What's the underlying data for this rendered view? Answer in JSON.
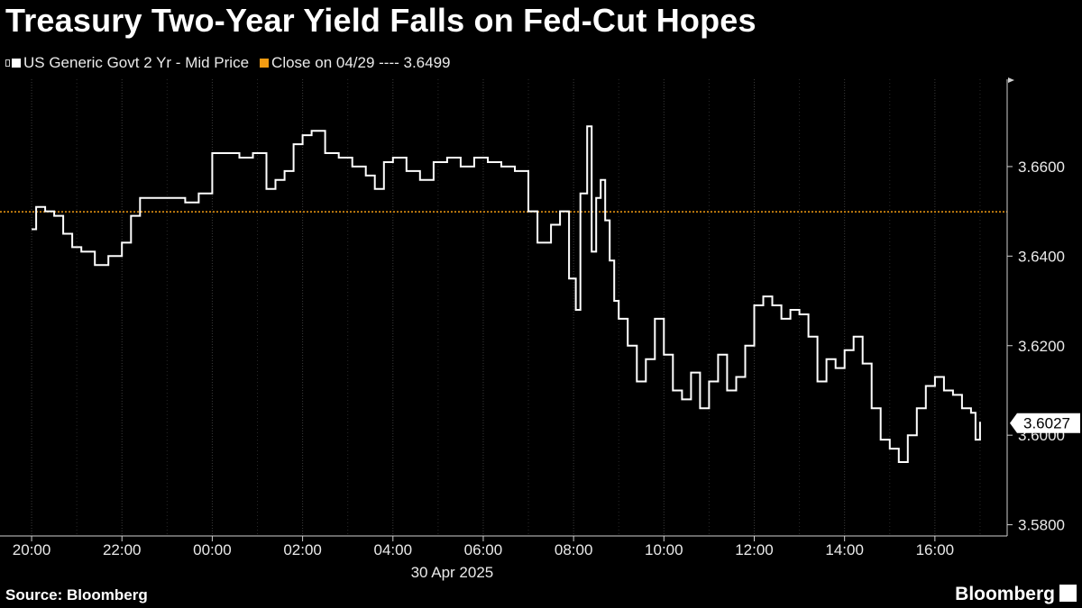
{
  "title": "Treasury Two-Year Yield Falls on Fed-Cut Hopes",
  "legend": {
    "series_label": "US Generic Govt 2 Yr - Mid Price",
    "close_label": "Close on 04/29 ---- 3.6499"
  },
  "footer": {
    "source": "Source: Bloomberg",
    "brand": "Bloomberg"
  },
  "colors": {
    "background": "#000000",
    "line": "#ffffff",
    "reference": "#f39c12",
    "grid": "#3a3a3a"
  },
  "chart_data": {
    "type": "line",
    "x_tick_labels": [
      "20:00",
      "22:00",
      "00:00",
      "02:00",
      "04:00",
      "06:00",
      "08:00",
      "10:00",
      "12:00",
      "14:00",
      "16:00"
    ],
    "x_date_label": "30 Apr 2025",
    "y_tick_labels": [
      "3.5800",
      "3.6000",
      "3.6200",
      "3.6400",
      "3.6600"
    ],
    "ylim": [
      3.5775,
      3.6795
    ],
    "xlim_hours": [
      -4.7,
      17.6
    ],
    "grid": "vertical",
    "reference_line": {
      "value": 3.6499,
      "label": "Close on 04/29 ---- 3.6499"
    },
    "last_value": {
      "value": 3.6027,
      "label": "3.6027"
    },
    "series": [
      {
        "name": "US Generic Govt 2 Yr - Mid Price",
        "x": [
          -4.0,
          -3.9,
          -3.7,
          -3.5,
          -3.3,
          -3.1,
          -2.9,
          -2.6,
          -2.3,
          -2.0,
          -1.8,
          -1.6,
          -1.3,
          -1.0,
          -0.6,
          -0.3,
          0.0,
          0.3,
          0.6,
          0.9,
          1.2,
          1.4,
          1.6,
          1.8,
          2.0,
          2.2,
          2.5,
          2.8,
          3.1,
          3.4,
          3.6,
          3.8,
          4.0,
          4.3,
          4.6,
          4.9,
          5.2,
          5.5,
          5.8,
          6.1,
          6.4,
          6.7,
          7.0,
          7.2,
          7.5,
          7.7,
          7.9,
          8.05,
          8.15,
          8.3,
          8.4,
          8.5,
          8.6,
          8.7,
          8.8,
          8.9,
          9.0,
          9.2,
          9.4,
          9.6,
          9.8,
          10.0,
          10.2,
          10.4,
          10.6,
          10.8,
          11.0,
          11.2,
          11.4,
          11.6,
          11.8,
          12.0,
          12.2,
          12.4,
          12.6,
          12.8,
          13.0,
          13.2,
          13.4,
          13.6,
          13.8,
          14.0,
          14.2,
          14.4,
          14.6,
          14.8,
          15.0,
          15.2,
          15.4,
          15.6,
          15.8,
          16.0,
          16.2,
          16.4,
          16.6,
          16.8,
          16.9,
          17.0
        ],
        "values": [
          3.646,
          3.651,
          3.65,
          3.649,
          3.645,
          3.642,
          3.641,
          3.638,
          3.64,
          3.643,
          3.649,
          3.653,
          3.653,
          3.653,
          3.652,
          3.654,
          3.663,
          3.663,
          3.662,
          3.663,
          3.655,
          3.657,
          3.659,
          3.665,
          3.667,
          3.668,
          3.663,
          3.662,
          3.66,
          3.658,
          3.655,
          3.661,
          3.662,
          3.659,
          3.657,
          3.661,
          3.662,
          3.66,
          3.662,
          3.661,
          3.66,
          3.659,
          3.65,
          3.643,
          3.647,
          3.65,
          3.635,
          3.628,
          3.654,
          3.669,
          3.641,
          3.653,
          3.657,
          3.648,
          3.639,
          3.63,
          3.626,
          3.62,
          3.612,
          3.617,
          3.626,
          3.618,
          3.61,
          3.608,
          3.614,
          3.606,
          3.612,
          3.618,
          3.61,
          3.613,
          3.62,
          3.629,
          3.631,
          3.629,
          3.626,
          3.628,
          3.627,
          3.622,
          3.612,
          3.617,
          3.615,
          3.619,
          3.622,
          3.616,
          3.606,
          3.599,
          3.597,
          3.594,
          3.6,
          3.606,
          3.611,
          3.613,
          3.61,
          3.609,
          3.606,
          3.605,
          3.599,
          3.603
        ]
      }
    ]
  }
}
